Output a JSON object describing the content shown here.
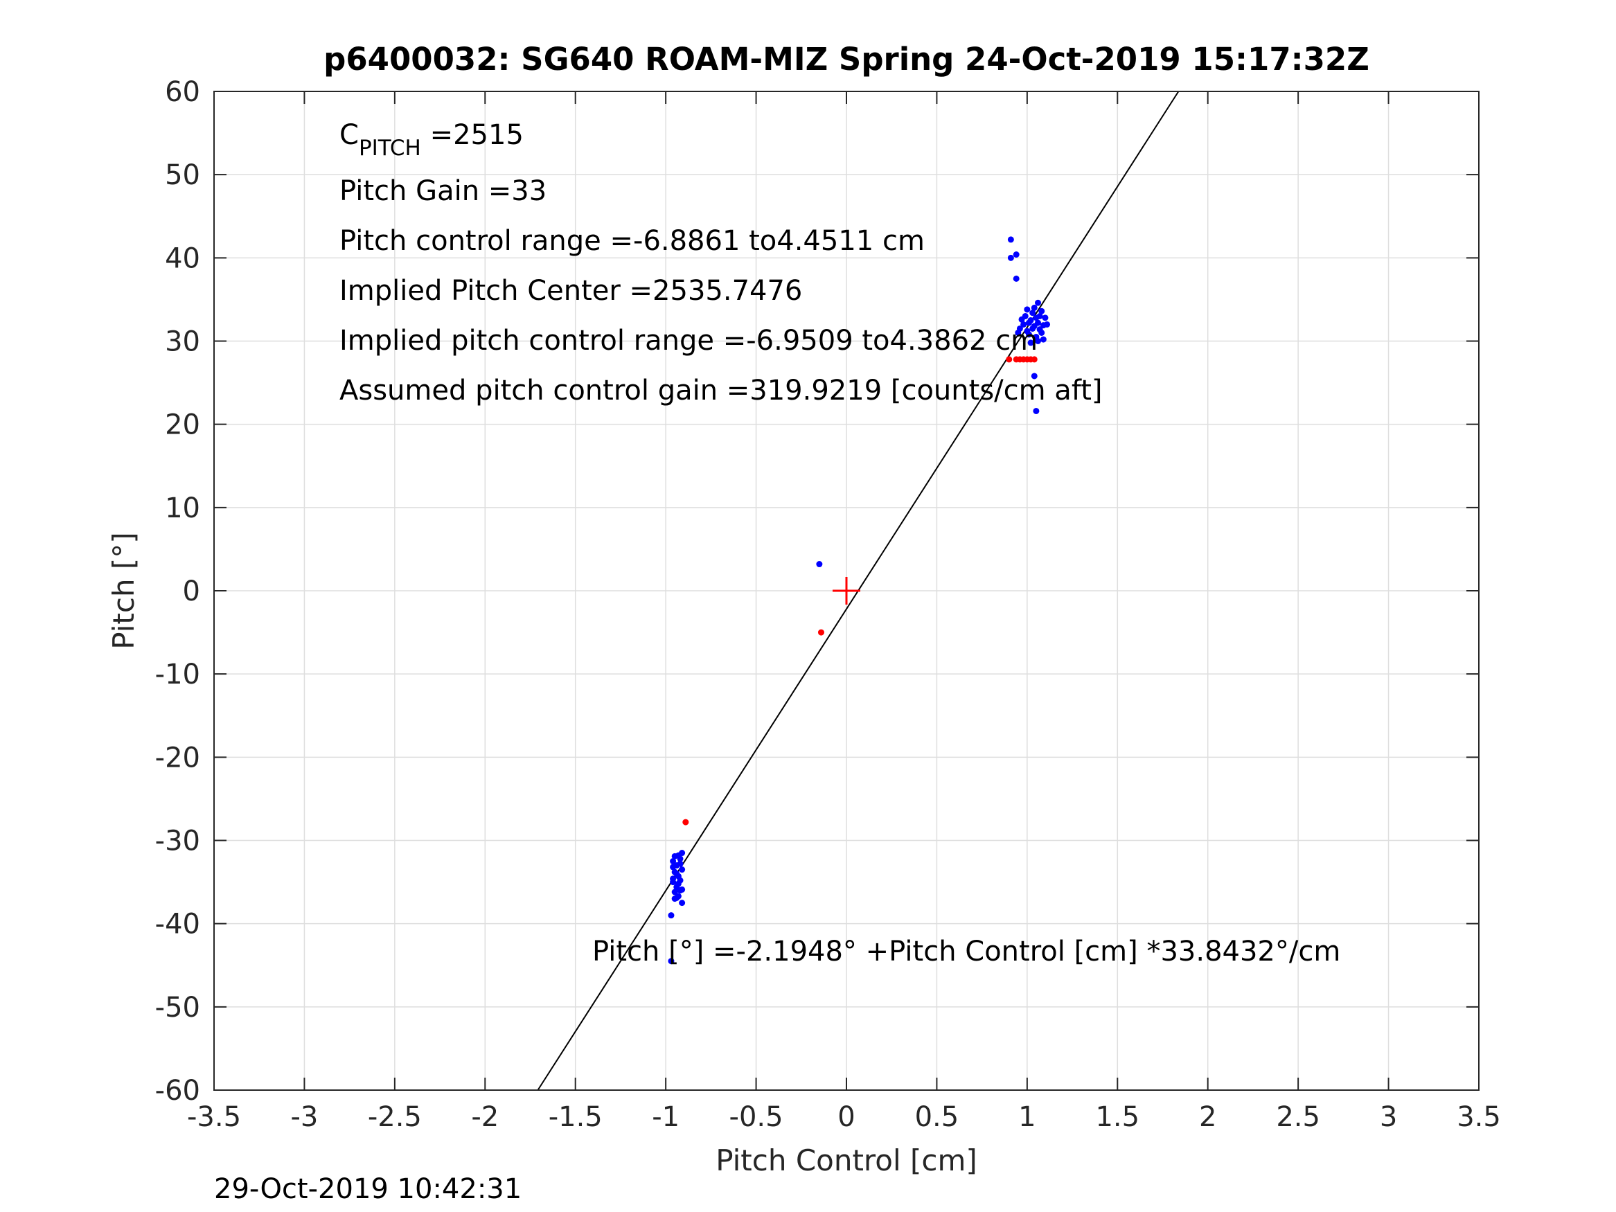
{
  "chart_data": {
    "type": "scatter",
    "title": "p6400032: SG640 ROAM-MIZ Spring 24-Oct-2019 15:17:32Z",
    "xlabel": "Pitch Control [cm]",
    "ylabel": "Pitch [°]",
    "xlim": [
      -3.5,
      3.5
    ],
    "ylim": [
      -60,
      60
    ],
    "xticks": [
      -3.5,
      -3,
      -2.5,
      -2,
      -1.5,
      -1,
      -0.5,
      0,
      0.5,
      1,
      1.5,
      2,
      2.5,
      3,
      3.5
    ],
    "yticks": [
      -60,
      -50,
      -40,
      -30,
      -20,
      -10,
      0,
      10,
      20,
      30,
      40,
      50,
      60
    ],
    "grid": true,
    "annotations": {
      "c_pitch_main": "C",
      "c_pitch_sub": "PITCH",
      "c_pitch_value": " =2515",
      "pitch_gain": "Pitch Gain =33",
      "pitch_control_range": "Pitch control range =-6.8861 to4.4511 cm",
      "implied_pitch_center": "Implied Pitch Center =2535.7476",
      "implied_pitch_control_range": "Implied pitch control range =-6.9509 to4.3862 cm",
      "assumed_gain": "Assumed pitch control gain =319.9219 [counts/cm aft]",
      "fit_equation": "Pitch [°] =-2.1948° +Pitch Control [cm] *33.8432°/cm"
    },
    "timestamp": "29-Oct-2019 10:42:31",
    "fit_line": {
      "intercept": -2.1948,
      "slope": 33.8432,
      "color": "#000000"
    },
    "center_marker": {
      "x": 0,
      "y": 0,
      "color": "#ff0000"
    },
    "series": [
      {
        "color": "#0000ff",
        "points": [
          [
            -0.96,
            -32.5
          ],
          [
            -0.94,
            -33.0
          ],
          [
            -0.92,
            -32.2
          ],
          [
            -0.95,
            -33.8
          ],
          [
            -0.93,
            -34.3
          ],
          [
            -0.91,
            -33.5
          ],
          [
            -0.96,
            -35.0
          ],
          [
            -0.94,
            -35.6
          ],
          [
            -0.92,
            -34.8
          ],
          [
            -0.95,
            -36.2
          ],
          [
            -0.93,
            -36.7
          ],
          [
            -0.91,
            -35.9
          ],
          [
            -0.95,
            -37.0
          ],
          [
            -0.93,
            -31.8
          ],
          [
            -0.91,
            -31.5
          ],
          [
            -0.94,
            -34.0
          ],
          [
            -0.92,
            -36.0
          ],
          [
            -0.96,
            -33.2
          ],
          [
            -0.93,
            -35.2
          ],
          [
            -0.91,
            -37.5
          ],
          [
            -0.95,
            -31.9
          ],
          [
            -0.92,
            -32.8
          ],
          [
            -0.94,
            -36.9
          ],
          [
            -0.96,
            -34.6
          ],
          [
            -0.97,
            -39.0
          ],
          [
            -0.97,
            -44.5
          ],
          [
            -0.15,
            3.2
          ],
          [
            0.91,
            42.2
          ],
          [
            0.91,
            40.0
          ],
          [
            0.94,
            40.4
          ],
          [
            0.94,
            37.5
          ],
          [
            0.96,
            31.5
          ],
          [
            0.98,
            32.0
          ],
          [
            1.0,
            31.2
          ],
          [
            1.02,
            32.5
          ],
          [
            1.04,
            31.8
          ],
          [
            1.06,
            32.2
          ],
          [
            1.08,
            31.0
          ],
          [
            1.1,
            32.8
          ],
          [
            0.99,
            33.0
          ],
          [
            1.01,
            30.8
          ],
          [
            1.03,
            33.4
          ],
          [
            1.05,
            30.5
          ],
          [
            1.07,
            33.0
          ],
          [
            1.09,
            30.2
          ],
          [
            0.97,
            32.6
          ],
          [
            1.0,
            33.8
          ],
          [
            1.04,
            34.0
          ],
          [
            1.06,
            30.0
          ],
          [
            1.02,
            29.8
          ],
          [
            1.08,
            33.6
          ],
          [
            1.11,
            32.0
          ],
          [
            0.95,
            31.0
          ],
          [
            1.03,
            31.5
          ],
          [
            1.05,
            32.8
          ],
          [
            1.01,
            32.2
          ],
          [
            1.07,
            31.4
          ],
          [
            1.09,
            31.9
          ],
          [
            1.06,
            34.6
          ],
          [
            1.04,
            25.8
          ],
          [
            1.05,
            21.6
          ]
        ]
      },
      {
        "color": "#ff0000",
        "points": [
          [
            -0.89,
            -27.8
          ],
          [
            -0.14,
            -5.0
          ],
          [
            0.9,
            27.8
          ],
          [
            0.94,
            27.8
          ],
          [
            0.96,
            27.8
          ],
          [
            0.98,
            27.8
          ],
          [
            1.0,
            27.8
          ],
          [
            1.02,
            27.8
          ],
          [
            1.04,
            27.8
          ]
        ]
      }
    ]
  }
}
